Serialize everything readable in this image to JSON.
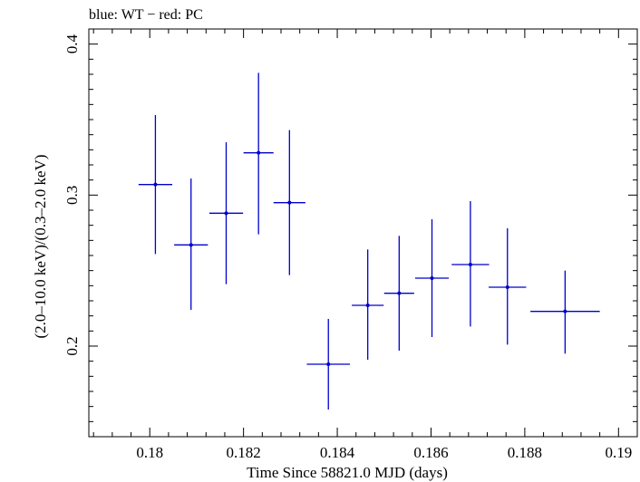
{
  "chart_data": {
    "type": "scatter",
    "title": "blue: WT − red: PC",
    "xlabel": "Time Since 58821.0 MJD (days)",
    "ylabel": "(2.0–10.0 keV)/(0.3–2.0 keV)",
    "xlim": [
      0.1787,
      0.1904
    ],
    "ylim": [
      0.14,
      0.41
    ],
    "x_ticks": [
      {
        "value": 0.18,
        "label": "0.18"
      },
      {
        "value": 0.182,
        "label": "0.182"
      },
      {
        "value": 0.184,
        "label": "0.184"
      },
      {
        "value": 0.186,
        "label": "0.186"
      },
      {
        "value": 0.188,
        "label": "0.188"
      },
      {
        "value": 0.19,
        "label": "0.19"
      }
    ],
    "y_ticks": [
      {
        "value": 0.2,
        "label": "0.2"
      },
      {
        "value": 0.3,
        "label": "0.3"
      },
      {
        "value": 0.4,
        "label": "0.4"
      }
    ],
    "grid": false,
    "series": [
      {
        "color": "#0000cc",
        "points": [
          {
            "x": 0.18012,
            "xerr": 0.00036,
            "y": 0.307,
            "ylo": 0.261,
            "yhi": 0.353
          },
          {
            "x": 0.18088,
            "xerr": 0.00036,
            "y": 0.267,
            "ylo": 0.224,
            "yhi": 0.311
          },
          {
            "x": 0.18163,
            "xerr": 0.00036,
            "y": 0.288,
            "ylo": 0.241,
            "yhi": 0.335
          },
          {
            "x": 0.18232,
            "xerr": 0.00032,
            "y": 0.328,
            "ylo": 0.274,
            "yhi": 0.381
          },
          {
            "x": 0.18298,
            "xerr": 0.00034,
            "y": 0.295,
            "ylo": 0.247,
            "yhi": 0.343
          },
          {
            "x": 0.18381,
            "xerr": 0.00046,
            "y": 0.188,
            "ylo": 0.158,
            "yhi": 0.218
          },
          {
            "x": 0.18465,
            "xerr": 0.00034,
            "y": 0.227,
            "ylo": 0.191,
            "yhi": 0.264
          },
          {
            "x": 0.18532,
            "xerr": 0.00032,
            "y": 0.235,
            "ylo": 0.197,
            "yhi": 0.273
          },
          {
            "x": 0.18602,
            "xerr": 0.00036,
            "y": 0.245,
            "ylo": 0.206,
            "yhi": 0.284
          },
          {
            "x": 0.18684,
            "xerr": 0.0004,
            "y": 0.254,
            "ylo": 0.213,
            "yhi": 0.296
          },
          {
            "x": 0.18763,
            "xerr": 0.0004,
            "y": 0.239,
            "ylo": 0.201,
            "yhi": 0.278
          },
          {
            "x": 0.18886,
            "xerr": 0.00074,
            "y": 0.223,
            "ylo": 0.195,
            "yhi": 0.25
          }
        ]
      }
    ]
  }
}
